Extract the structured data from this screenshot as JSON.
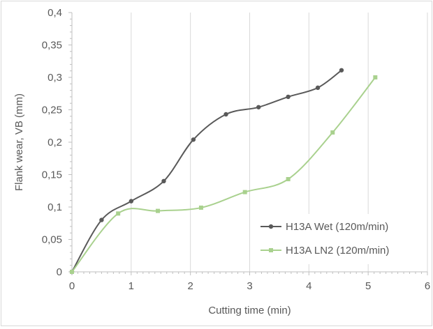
{
  "chart_data": {
    "type": "line",
    "title": "",
    "xlabel": "Cutting time (min)",
    "ylabel": "Flank wear, VB (mm)",
    "xlim": [
      0,
      6
    ],
    "ylim": [
      0,
      0.4
    ],
    "x_ticks": [
      0,
      1,
      2,
      3,
      4,
      5,
      6
    ],
    "x_tick_labels": [
      "0",
      "1",
      "2",
      "3",
      "4",
      "5",
      "6"
    ],
    "y_ticks": [
      0,
      0.05,
      0.1,
      0.15,
      0.2,
      0.25,
      0.3,
      0.35,
      0.4
    ],
    "y_tick_labels": [
      "0",
      "0,05",
      "0,1",
      "0,15",
      "0,2",
      "0,25",
      "0,3",
      "0,35",
      "0,4"
    ],
    "grid": "vertical",
    "legend_position": "bottom-right",
    "series": [
      {
        "name": "H13A Wet (120m/min)",
        "color": "#595959",
        "marker": "circle",
        "x": [
          0,
          0.5,
          1.0,
          1.55,
          2.05,
          2.6,
          3.15,
          3.65,
          4.15,
          4.55
        ],
        "y": [
          0,
          0.08,
          0.109,
          0.14,
          0.204,
          0.243,
          0.254,
          0.27,
          0.284,
          0.311
        ]
      },
      {
        "name": "H13A LN2 (120m/min)",
        "color": "#a9d18e",
        "marker": "square",
        "x": [
          0,
          0.78,
          1.45,
          2.18,
          2.92,
          3.65,
          4.4,
          5.12
        ],
        "y": [
          0,
          0.09,
          0.094,
          0.099,
          0.123,
          0.143,
          0.215,
          0.3
        ]
      }
    ]
  }
}
